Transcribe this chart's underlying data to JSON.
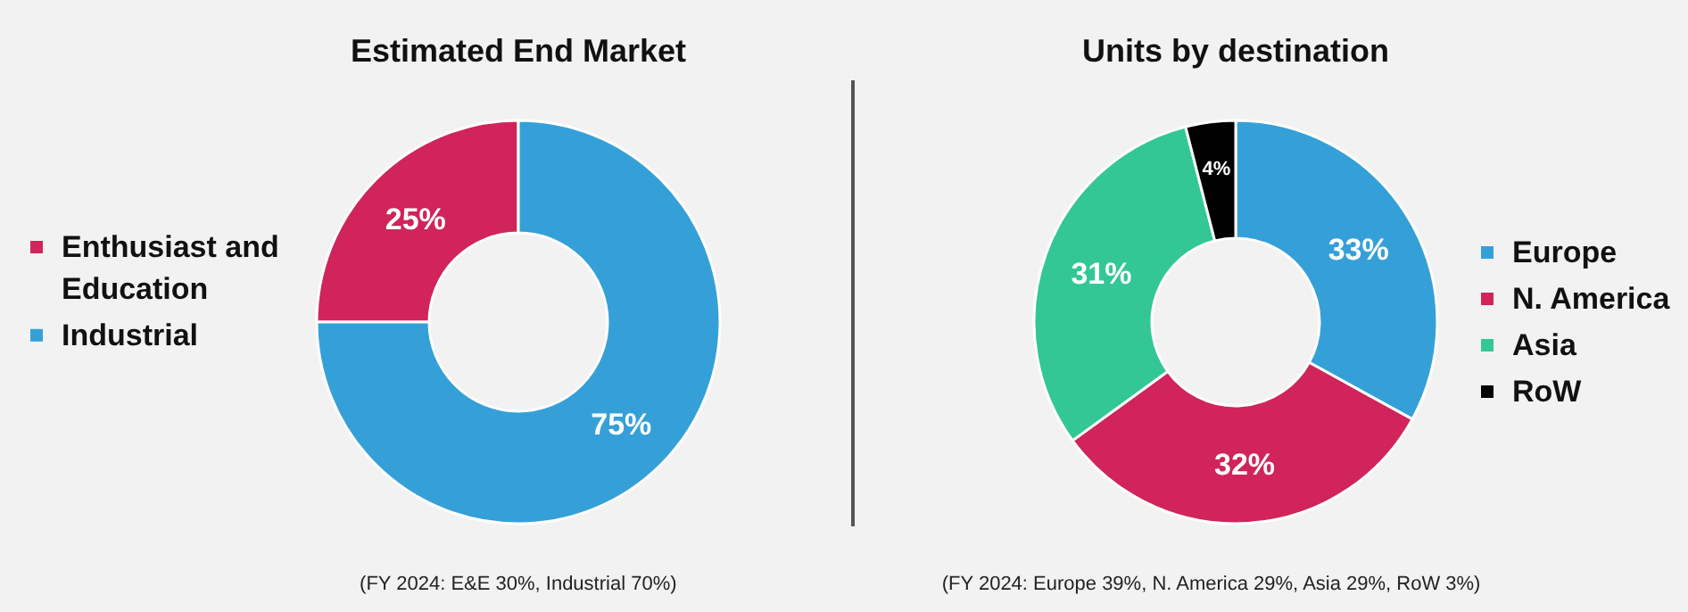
{
  "chart_data": [
    {
      "type": "donut",
      "title": "Estimated End Market",
      "categories": [
        "Enthusiast and Education",
        "Industrial"
      ],
      "values": [
        25,
        75
      ],
      "colors": [
        "#d0245a",
        "#35a0d8"
      ],
      "value_labels": [
        "25%",
        "75%"
      ],
      "legend": "left",
      "annotations": [
        "(FY 2024: E&E 30%, Industrial 70%)"
      ]
    },
    {
      "type": "donut",
      "title": "Units by destination",
      "categories": [
        "Europe",
        "N. America",
        "Asia",
        "RoW"
      ],
      "values": [
        33,
        32,
        31,
        4
      ],
      "colors": [
        "#35a0d8",
        "#d0245a",
        "#33c795",
        "#000000"
      ],
      "value_labels": [
        "33%",
        "32%",
        "31%",
        "4%"
      ],
      "legend": "right",
      "annotations": [
        "(FY 2024: Europe 39%, N. America 29%, Asia 29%, RoW 3%)"
      ]
    }
  ]
}
